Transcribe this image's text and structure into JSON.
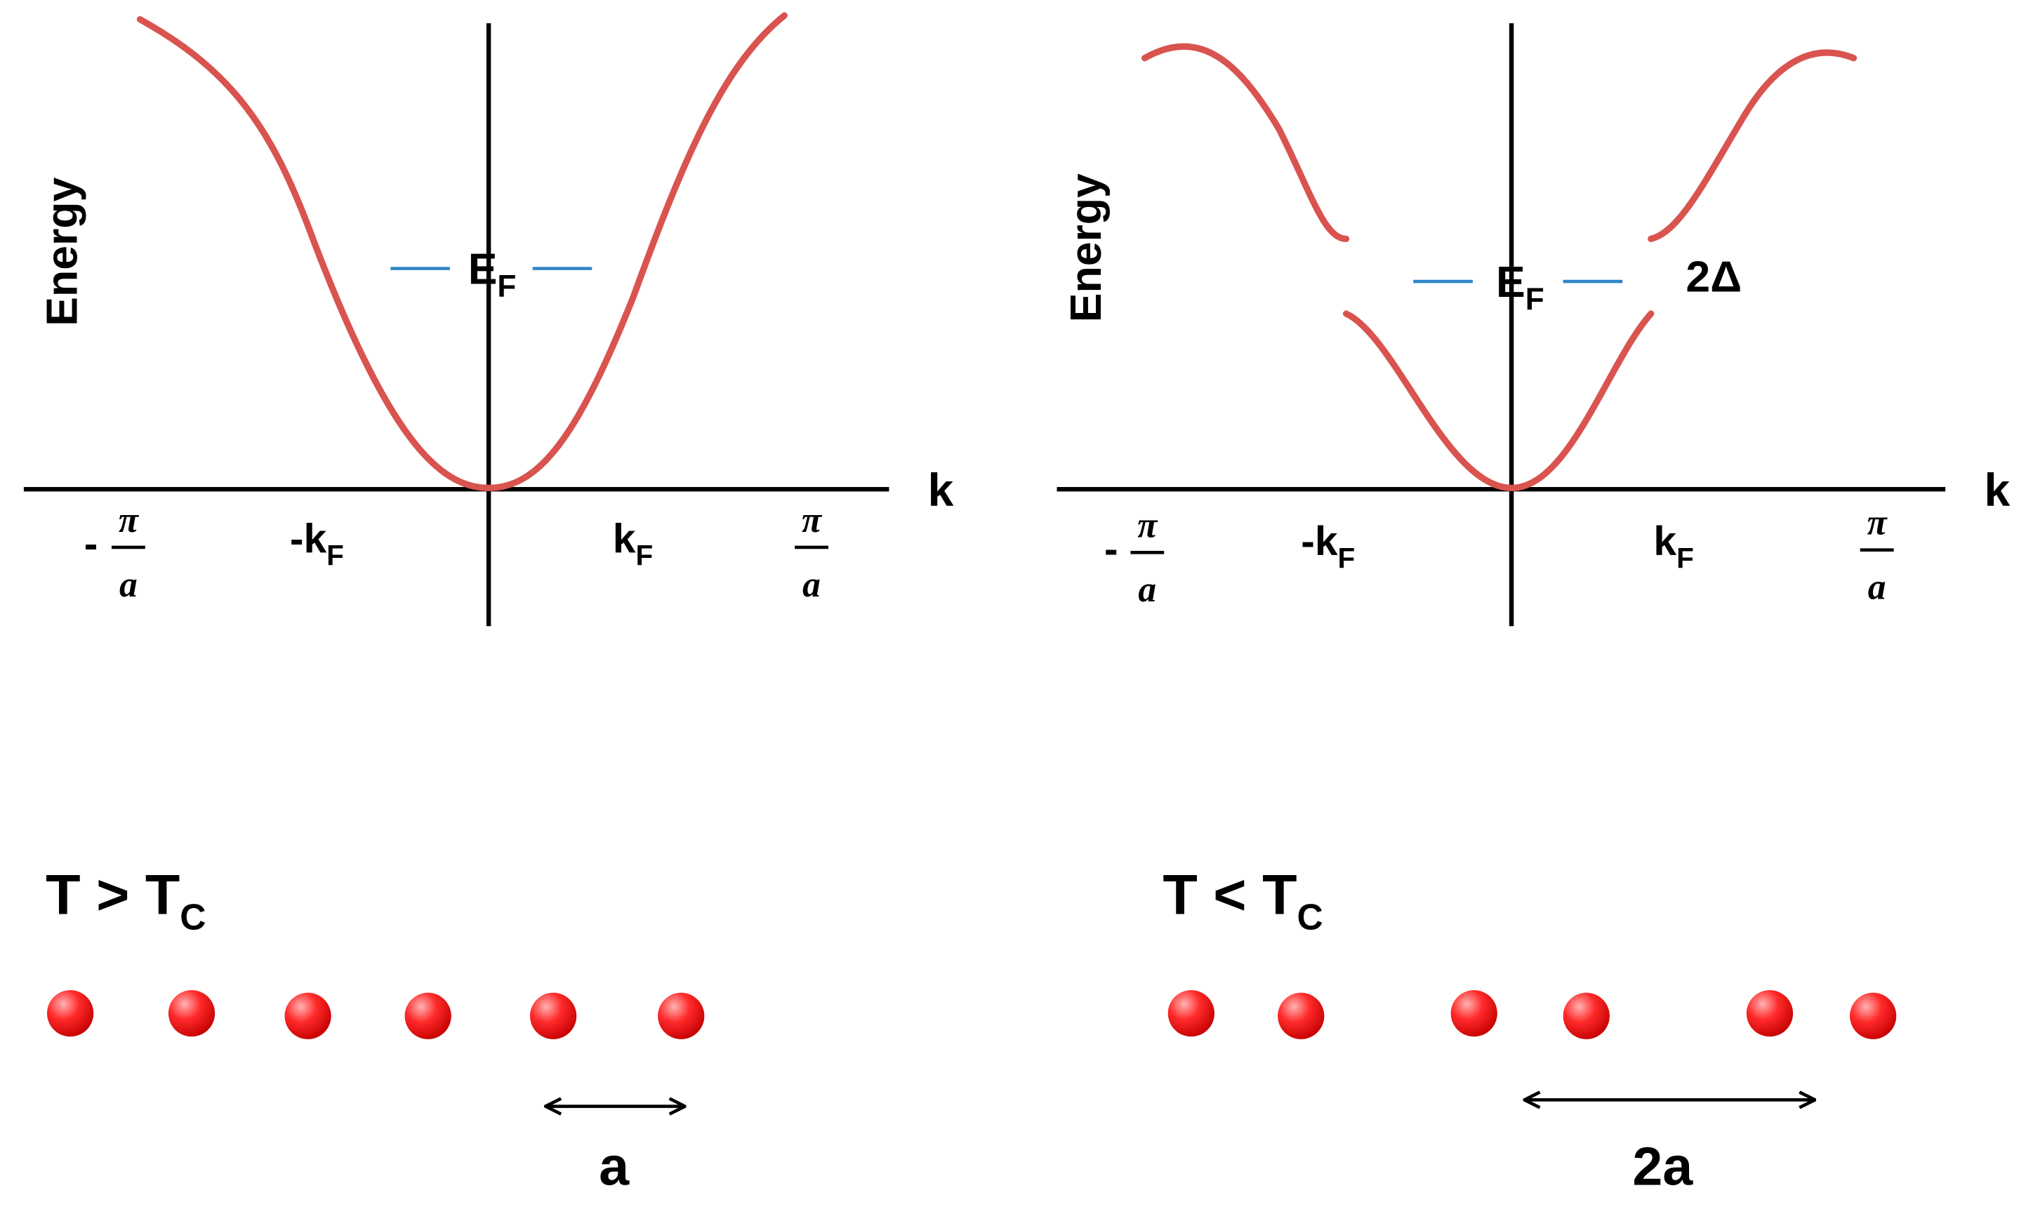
{
  "panels": [
    {
      "y_label": "Energy",
      "x_label": "k",
      "fermi_level": {
        "main": "E",
        "sub": "F"
      },
      "ticks": [
        {
          "sign": "-",
          "numerator": "π",
          "denominator": "a"
        },
        {
          "main": "-k",
          "sub": "F"
        },
        {
          "main": "k",
          "sub": "F"
        },
        {
          "numerator": "π",
          "denominator": "a"
        }
      ]
    },
    {
      "y_label": "Energy",
      "x_label": "k",
      "fermi_level": {
        "main": "E",
        "sub": "F"
      },
      "gap_label": "2Δ",
      "ticks": [
        {
          "sign": "-",
          "numerator": "π",
          "denominator": "a"
        },
        {
          "main": "-k",
          "sub": "F"
        },
        {
          "main": "k",
          "sub": "F"
        },
        {
          "numerator": "π",
          "denominator": "a"
        }
      ]
    }
  ],
  "lattices": [
    {
      "condition": {
        "main": "T > T",
        "sub": "C"
      },
      "spacing_label": "a"
    },
    {
      "condition": {
        "main": "T < T",
        "sub": "C"
      },
      "spacing_label": "2a"
    }
  ]
}
